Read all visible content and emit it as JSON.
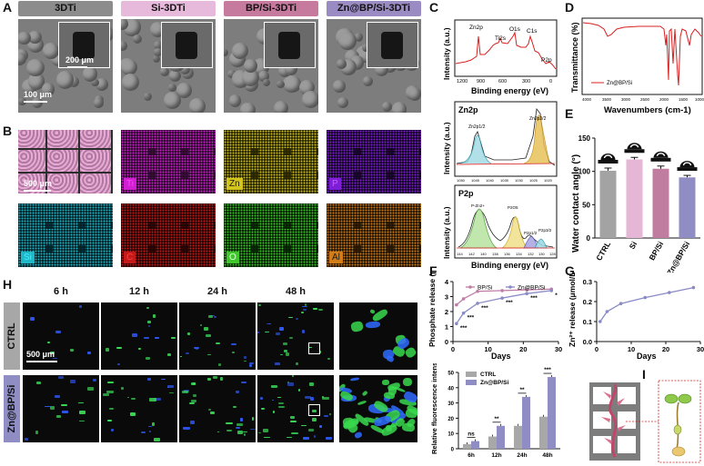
{
  "panels": {
    "A": "A",
    "B": "B",
    "C": "C",
    "D": "D",
    "E": "E",
    "F": "F",
    "G": "G",
    "H": "H",
    "I": "I"
  },
  "panelA": {
    "headers": [
      {
        "label": "3DTi",
        "color": "#8c8c8c"
      },
      {
        "label": "Si-3DTi",
        "color": "#e7b9da"
      },
      {
        "label": "BP/Si-3DTi",
        "color": "#c57a9e"
      },
      {
        "label": "Zn@BP/Si-3DTi",
        "color": "#9a8cc3"
      }
    ],
    "scale_large": "100 μm",
    "scale_inset": "200 μm"
  },
  "panelB": {
    "scale": "500 μm",
    "maps": [
      {
        "label": "Ti",
        "color": "#d01fd0",
        "bg": "#2a0a2a",
        "text": "#ff40ff"
      },
      {
        "label": "Zn",
        "color": "#d4c41e",
        "bg": "#242200",
        "text": "#1a1a1a"
      },
      {
        "label": "P",
        "color": "#7e1ed8",
        "bg": "#140622",
        "text": "#c060ff"
      },
      {
        "label": "Si",
        "color": "#1fb8c8",
        "bg": "#032026",
        "text": "#40f0ff"
      },
      {
        "label": "C",
        "color": "#c41a1a",
        "bg": "#220404",
        "text": "#ff4040"
      },
      {
        "label": "O",
        "color": "#3fc829",
        "bg": "#061e04",
        "text": "#e8ffe8"
      },
      {
        "label": "Al",
        "color": "#d27e18",
        "bg": "#221404",
        "text": "#1a1a1a"
      }
    ]
  },
  "panelC": {
    "ylabel": "Intensity (a.u.)",
    "xlabel": "Binding energy (eV)",
    "survey": {
      "peaks": [
        "Zn2p",
        "Ti2s",
        "O1s",
        "C1s",
        "P2p"
      ],
      "ticks": [
        "1200",
        "900",
        "600",
        "300",
        "0"
      ]
    },
    "zn": {
      "title": "Zn2p",
      "peaks": [
        "Zn2p1/2",
        "Zn2p3/2"
      ],
      "ticks": [
        "1050",
        "1045",
        "1040",
        "1035",
        "1030",
        "1025",
        "1020"
      ]
    },
    "p": {
      "title": "P2p",
      "peaks": [
        "P-Zn2+",
        "P2O5",
        "P2p1/2",
        "P2p3/2"
      ],
      "ticks": [
        "144",
        "142",
        "140",
        "138",
        "136",
        "134",
        "132",
        "130",
        "128"
      ]
    }
  },
  "panelD": {
    "ylabel": "Transmittance (%)",
    "xlabel": "Wavenumbers (cm-1)",
    "legend": "Zn@BP/Si",
    "ticks": [
      "4000",
      "3500",
      "3000",
      "2500",
      "2000",
      "1500",
      "1000"
    ]
  },
  "chart_data": [
    {
      "type": "bar",
      "title": "",
      "ylabel": "Water contact angle (°)",
      "categories": [
        "CTRL",
        "Si",
        "BP/Si",
        "Zn@BP/Si"
      ],
      "values": [
        101,
        118,
        104,
        91
      ],
      "errors": [
        4,
        3,
        4,
        3
      ],
      "ylim": [
        0,
        150
      ],
      "yticks": [
        "0",
        "50",
        "100",
        "150"
      ],
      "colors": [
        "#a3a3a3",
        "#e6b6d6",
        "#c07d9f",
        "#8f8dc4"
      ]
    },
    {
      "type": "line",
      "ylabel": "Phosphate release (μmol/L/cm²)",
      "xlabel": "Days",
      "xlim": [
        0,
        30
      ],
      "ylim": [
        0,
        4
      ],
      "xticks": [
        "0",
        "10",
        "20",
        "30"
      ],
      "yticks": [
        "0",
        "1",
        "2",
        "3",
        "4"
      ],
      "series": [
        {
          "name": "BP/Si",
          "x": [
            1,
            3,
            7,
            14,
            21,
            28
          ],
          "y": [
            2.45,
            2.85,
            3.35,
            3.4,
            3.45,
            3.5
          ],
          "color": "#c07da6"
        },
        {
          "name": "Zn@BP/Si",
          "x": [
            1,
            3,
            7,
            14,
            21,
            28
          ],
          "y": [
            1.2,
            1.9,
            2.55,
            2.9,
            3.2,
            3.4
          ],
          "color": "#8a8ac6"
        }
      ],
      "annotations": [
        "***",
        "***",
        "***",
        "***",
        "***",
        "*"
      ]
    },
    {
      "type": "line",
      "ylabel": "Zn²⁺ release (μmol/L/cm²)",
      "xlabel": "Days",
      "xlim": [
        0,
        30
      ],
      "ylim": [
        0,
        0.3
      ],
      "xticks": [
        "0",
        "10",
        "20",
        "30"
      ],
      "yticks": [
        "0.0",
        "0.1",
        "0.2",
        "0.3"
      ],
      "series": [
        {
          "x": [
            1,
            3,
            7,
            14,
            21,
            28
          ],
          "y": [
            0.1,
            0.15,
            0.19,
            0.22,
            0.245,
            0.27
          ],
          "color": "#8a8ac6"
        }
      ]
    },
    {
      "type": "bar",
      "ylabel": "Relative fluorescence intensity",
      "categories": [
        "6h",
        "12h",
        "24h",
        "48h"
      ],
      "ylim": [
        0,
        50
      ],
      "yticks": [
        "0",
        "10",
        "20",
        "30",
        "40",
        "50"
      ],
      "series": [
        {
          "name": "CTRL",
          "values": [
            3,
            8,
            15,
            21
          ],
          "color": "#a8a8a8"
        },
        {
          "name": "Zn@BP/Si",
          "values": [
            5,
            15,
            34,
            47
          ],
          "color": "#8f8dc4"
        }
      ],
      "annotations": [
        "ns",
        "**",
        "**",
        "***"
      ]
    }
  ],
  "panelH": {
    "times": [
      "6 h",
      "12 h",
      "24 h",
      "48 h"
    ],
    "rows": [
      "CTRL",
      "Zn@BP/Si"
    ],
    "scale": "500 μm"
  }
}
